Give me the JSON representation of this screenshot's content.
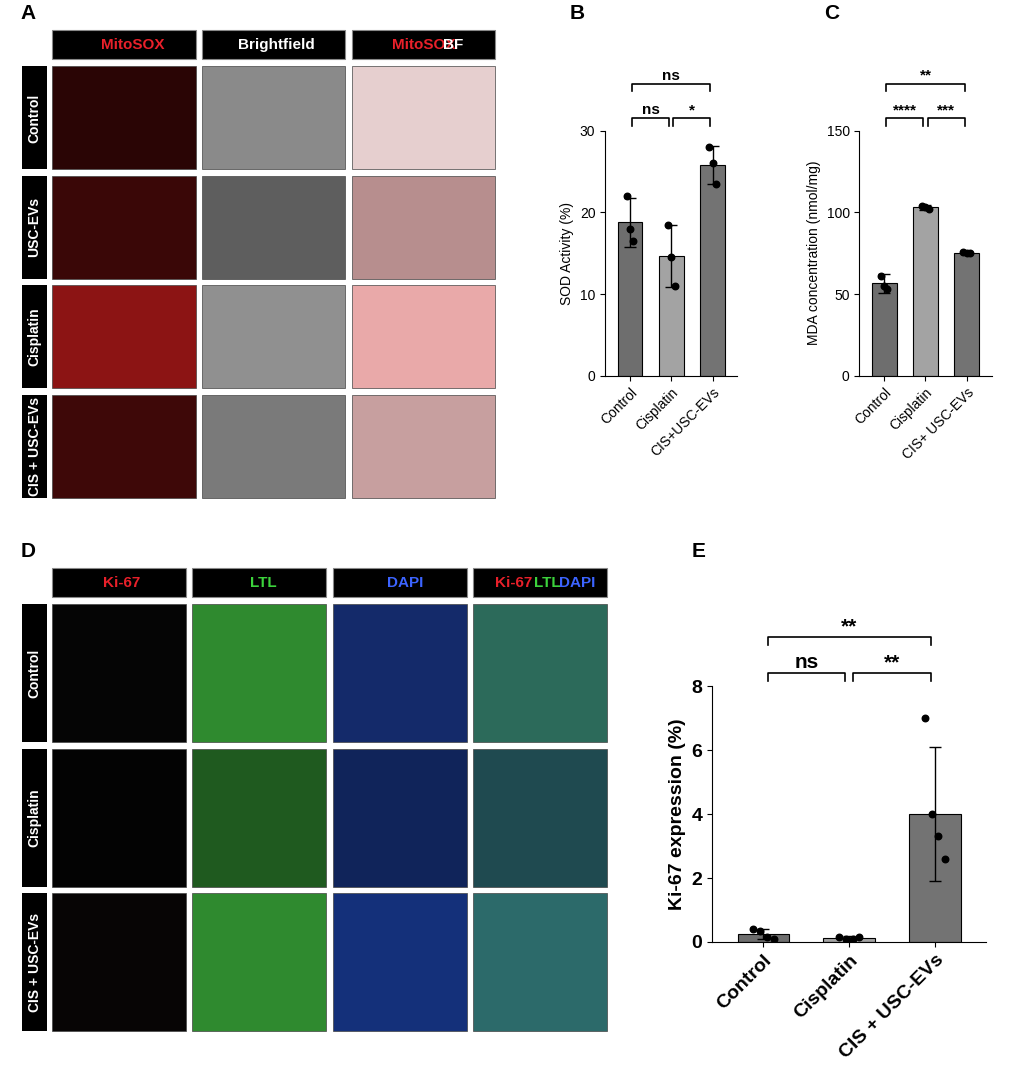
{
  "image_panels": [
    {
      "panel": "A",
      "columns": [
        [
          {
            "text": "MitoSOX",
            "color": "#e8202a"
          }
        ],
        [
          {
            "text": "Brightfield",
            "color": "#ffffff"
          }
        ],
        [
          {
            "text": "MitoSOX",
            "color": "#e8202a"
          },
          {
            "text": "BF",
            "color": "#ffffff"
          }
        ]
      ],
      "rows": [
        "Control",
        "USC-EVs",
        "Cisplatin",
        "CIS + USC-EVs"
      ]
    },
    {
      "panel": "D",
      "columns": [
        [
          {
            "text": "Ki-67",
            "color": "#e8202a"
          }
        ],
        [
          {
            "text": "LTL",
            "color": "#3cd23c"
          }
        ],
        [
          {
            "text": "DAPI",
            "color": "#3c64ff"
          }
        ],
        [
          {
            "text": "Ki-67",
            "color": "#e8202a"
          },
          {
            "text": "LTL",
            "color": "#3cd23c"
          },
          {
            "text": "DAPI",
            "color": "#3c64ff"
          }
        ]
      ],
      "rows": [
        "Control",
        "Cisplatin",
        "CIS + USC-EVs"
      ]
    }
  ],
  "chart_data": [
    {
      "panel": "B",
      "type": "bar",
      "ylabel": "SOD Activity (%)",
      "categories": [
        "Control",
        "Cisplatin",
        "CIS+USC-EVs"
      ],
      "values": [
        18.8,
        14.7,
        25.8
      ],
      "errors": [
        3.0,
        3.8,
        2.3
      ],
      "points": [
        [
          22,
          18,
          16.5
        ],
        [
          18.5,
          14.5,
          11
        ],
        [
          28,
          26,
          23.5
        ]
      ],
      "colors": [
        "#6e6e6e",
        "#a3a3a3",
        "#737373"
      ],
      "ylim": [
        0,
        30
      ],
      "yticks": [
        0,
        10,
        20,
        30
      ],
      "comparisons": [
        {
          "from": "Control",
          "to": "Cisplatin",
          "label": "ns"
        },
        {
          "from": "Cisplatin",
          "to": "CIS+USC-EVs",
          "label": "*"
        },
        {
          "from": "Control",
          "to": "CIS+USC-EVs",
          "label": "ns"
        }
      ]
    },
    {
      "panel": "C",
      "type": "bar",
      "ylabel": "MDA concentration (nmol/mg)",
      "categories": [
        "Control",
        "Cisplatin",
        "CIS+ USC-EVs"
      ],
      "values": [
        56.5,
        103,
        75.2
      ],
      "errors": [
        6,
        1.5,
        0.8
      ],
      "points": [
        [
          61,
          55,
          53
        ],
        [
          104,
          103,
          102
        ],
        [
          75.5,
          75,
          75
        ]
      ],
      "colors": [
        "#6e6e6e",
        "#a3a3a3",
        "#737373"
      ],
      "ylim": [
        0,
        150
      ],
      "yticks": [
        0,
        50,
        100,
        150
      ],
      "comparisons": [
        {
          "from": "Control",
          "to": "Cisplatin",
          "label": "****"
        },
        {
          "from": "Cisplatin",
          "to": "CIS+ USC-EVs",
          "label": "***"
        },
        {
          "from": "Control",
          "to": "CIS+ USC-EVs",
          "label": "**"
        }
      ]
    },
    {
      "panel": "E",
      "type": "bar",
      "ylabel": "Ki-67 expression (%)",
      "categories": [
        "Control",
        "Cisplatin",
        "CIS + USC-EVs"
      ],
      "values": [
        0.25,
        0.12,
        4.0
      ],
      "errors": [
        0.15,
        0.08,
        2.1
      ],
      "points": [
        [
          0.4,
          0.35,
          0.15,
          0.1
        ],
        [
          0.15,
          0.1,
          0.08,
          0.15
        ],
        [
          7.0,
          4.0,
          3.3,
          2.6
        ]
      ],
      "colors": [
        "#6e6e6e",
        "#a3a3a3",
        "#737373"
      ],
      "ylim": [
        0,
        8
      ],
      "yticks": [
        0,
        2,
        4,
        6,
        8
      ],
      "comparisons": [
        {
          "from": "Control",
          "to": "Cisplatin",
          "label": "ns"
        },
        {
          "from": "Cisplatin",
          "to": "CIS + USC-EVs",
          "label": "**"
        },
        {
          "from": "Control",
          "to": "CIS + USC-EVs",
          "label": "**"
        }
      ]
    }
  ]
}
